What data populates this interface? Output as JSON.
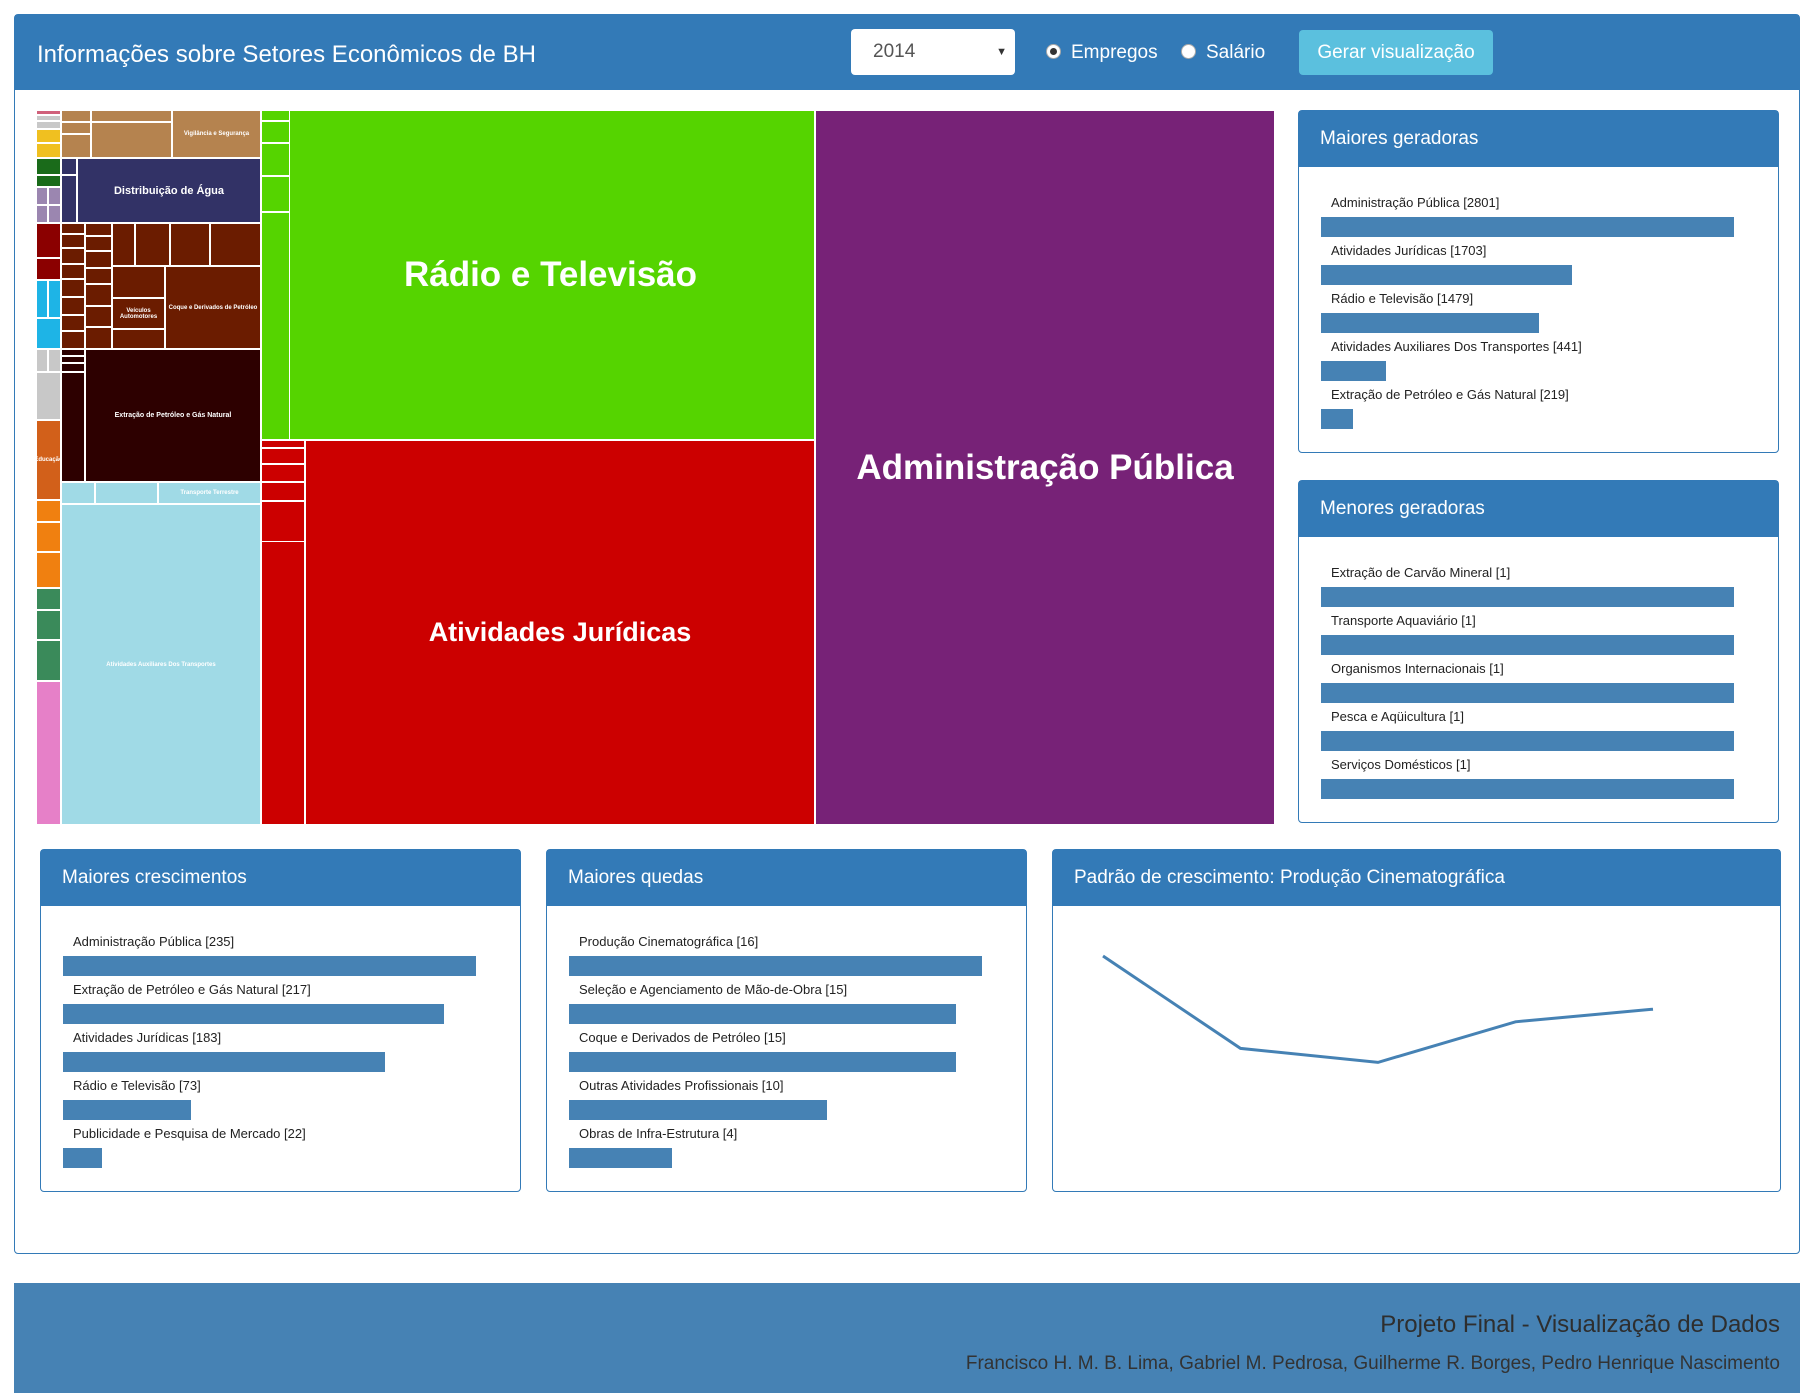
{
  "header": {
    "title": "Informações sobre Setores Econômicos de BH",
    "year_selected": "2014",
    "radio_jobs": "Empregos",
    "radio_salary": "Salário",
    "generate_button": "Gerar visualização"
  },
  "treemap": {
    "large_labels": {
      "admin": "Administração Pública",
      "radio": "Rádio e Televisão",
      "juridicas": "Atividades Jurídicas"
    },
    "small_labels": {
      "agua": "Distribuição de Água",
      "petroleo": "Extração de Petróleo e Gás Natural",
      "transporte_aux": "Atividades Auxiliares Dos Transportes",
      "transporte_terrestre": "Transporte Terrestre",
      "vigilancia": "Vigilância e Segurança",
      "educacao": "Educação",
      "veiculos": "Veículos Automotores",
      "coque": "Coque e Derivados de Petróleo"
    }
  },
  "panels": {
    "top_generators": {
      "title": "Maiores geradoras",
      "items": [
        {
          "label": "Administração Pública [2801]",
          "value": 2801
        },
        {
          "label": "Atividades Jurídicas [1703]",
          "value": 1703
        },
        {
          "label": "Rádio e Televisão [1479]",
          "value": 1479
        },
        {
          "label": "Atividades Auxiliares Dos Transportes [441]",
          "value": 441
        },
        {
          "label": "Extração de Petróleo e Gás Natural [219]",
          "value": 219
        }
      ]
    },
    "bottom_generators": {
      "title": "Menores geradoras",
      "items": [
        {
          "label": "Extração de Carvão Mineral [1]",
          "value": 1
        },
        {
          "label": "Transporte Aquaviário [1]",
          "value": 1
        },
        {
          "label": "Organismos Internacionais [1]",
          "value": 1
        },
        {
          "label": "Pesca e Aqüicultura [1]",
          "value": 1
        },
        {
          "label": "Serviços Domésticos [1]",
          "value": 1
        }
      ]
    },
    "growth": {
      "title": "Maiores crescimentos",
      "items": [
        {
          "label": "Administração Pública [235]",
          "value": 235
        },
        {
          "label": "Extração de Petróleo e Gás Natural [217]",
          "value": 217
        },
        {
          "label": "Atividades Jurídicas [183]",
          "value": 183
        },
        {
          "label": "Rádio e Televisão [73]",
          "value": 73
        },
        {
          "label": "Publicidade e Pesquisa de Mercado [22]",
          "value": 22
        }
      ]
    },
    "declines": {
      "title": "Maiores quedas",
      "items": [
        {
          "label": "Produção Cinematográfica [16]",
          "value": 16
        },
        {
          "label": "Seleção e Agenciamento de Mão-de-Obra [15]",
          "value": 15
        },
        {
          "label": "Coque e Derivados de Petróleo [15]",
          "value": 15
        },
        {
          "label": "Outras Atividades Profissionais [10]",
          "value": 10
        },
        {
          "label": "Obras de Infra-Estrutura [4]",
          "value": 4
        }
      ]
    },
    "pattern": {
      "title": "Padrão de crescimento: Produção Cinematográfica"
    }
  },
  "chart_data": {
    "type": "line",
    "title": "Padrão de crescimento: Produção Cinematográfica",
    "values": [
      100,
      34,
      24,
      53,
      62
    ],
    "color": "#4682b4"
  },
  "footer": {
    "title": "Projeto Final - Visualização de Dados",
    "authors": "Francisco H. M. B. Lima, Gabriel M. Pedrosa, Guilherme R. Borges, Pedro Henrique Nascimento"
  },
  "colors": {
    "primary": "#337ab7",
    "bar": "#4682b4",
    "button": "#5bc0de",
    "admin_tile": "#772277",
    "radio_tile": "#55d400",
    "juridicas_tile": "#cc0000"
  }
}
